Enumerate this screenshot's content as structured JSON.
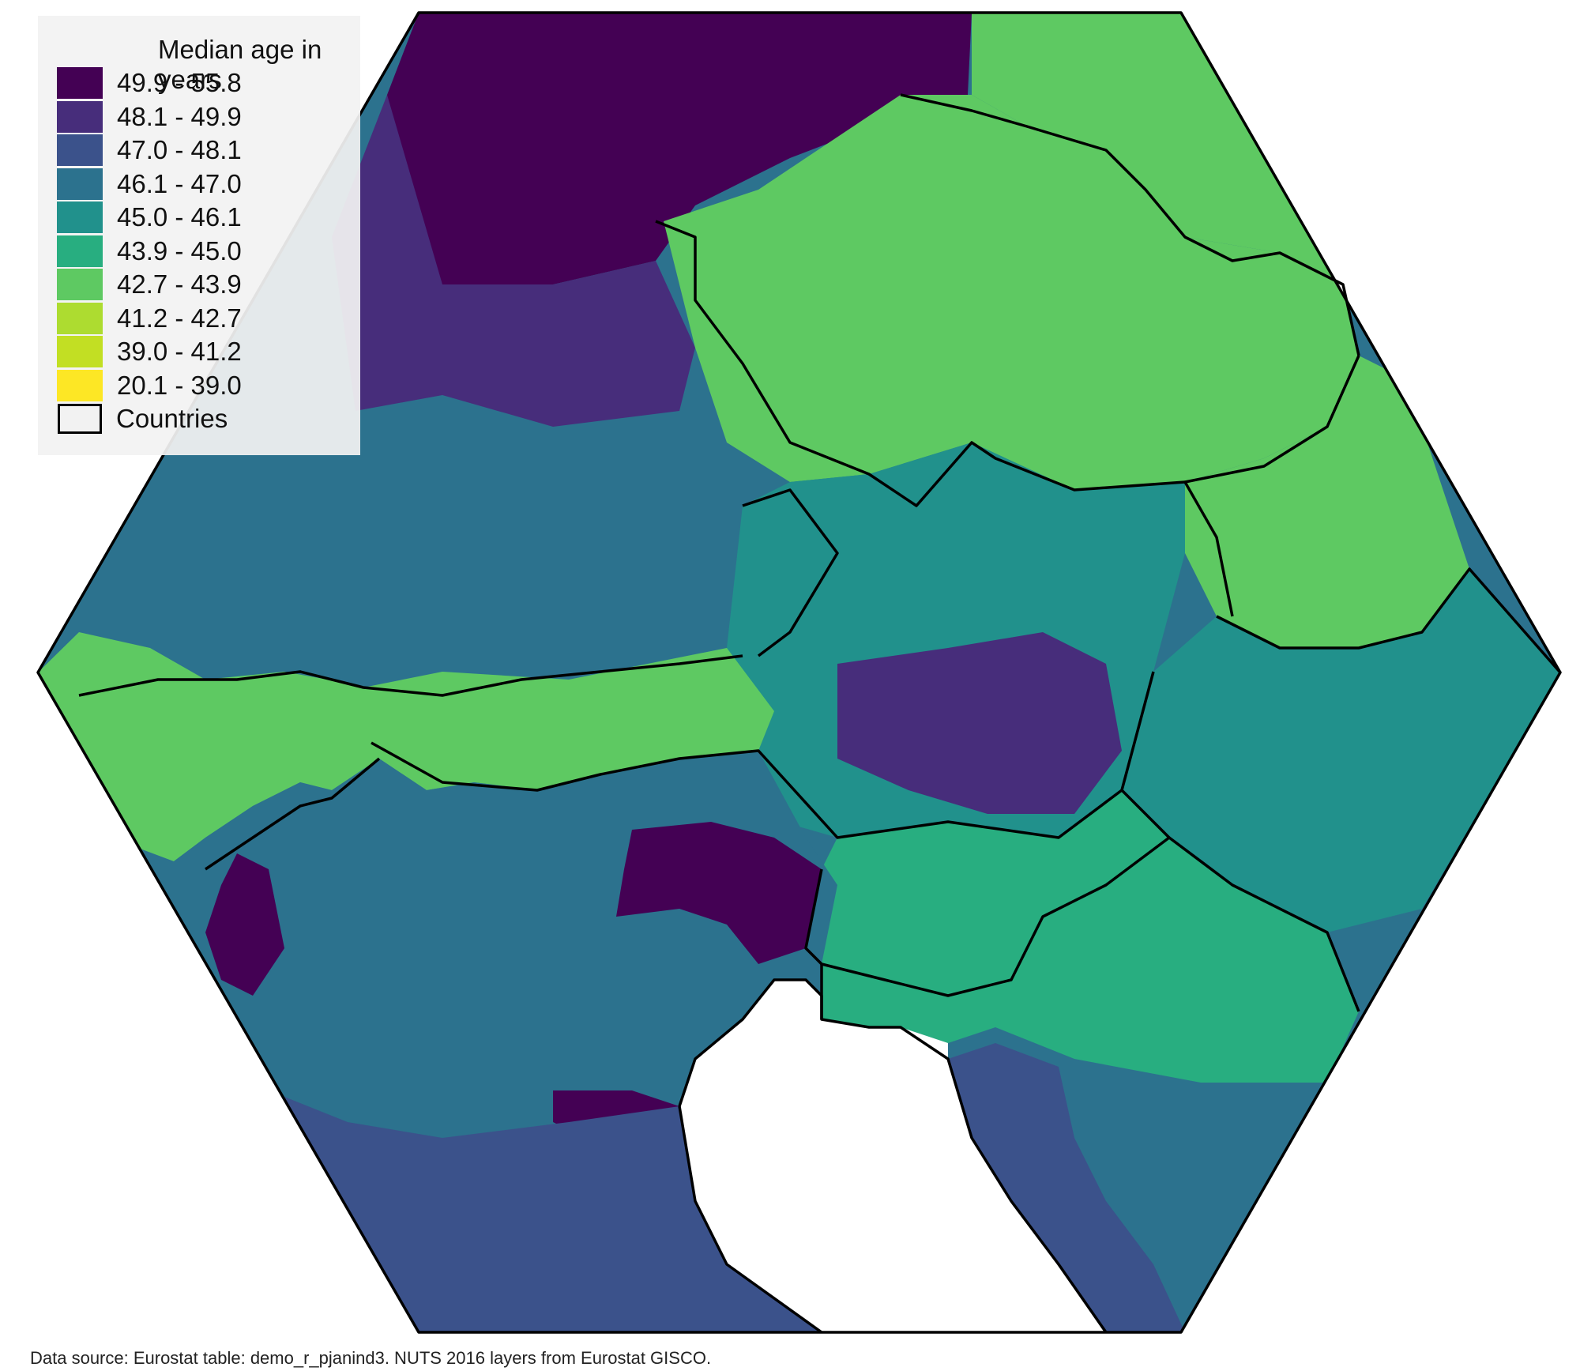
{
  "legend": {
    "title": "Median age in years",
    "classes": [
      {
        "label": "49.9 - 55.8",
        "color": "#440154"
      },
      {
        "label": "48.1 - 49.9",
        "color": "#472d7b"
      },
      {
        "label": "47.0 - 48.1",
        "color": "#3b528b"
      },
      {
        "label": "46.1 - 47.0",
        "color": "#2c728e"
      },
      {
        "label": "45.0 - 46.1",
        "color": "#21918c"
      },
      {
        "label": "43.9 - 45.0",
        "color": "#28ae80"
      },
      {
        "label": "42.7 - 43.9",
        "color": "#5ec962"
      },
      {
        "label": "41.2 - 42.7",
        "color": "#addc30"
      },
      {
        "label": "39.0 - 41.2",
        "color": "#c2df23"
      },
      {
        "label": "20.1 - 39.0",
        "color": "#fde725"
      }
    ],
    "countries_label": "Countries"
  },
  "source_note": "Data source: Eurostat table: demo_r_pjanind3. NUTS 2016 layers from Eurostat GISCO.",
  "map": {
    "region_colors": {
      "germany_north": "#440154",
      "germany_central": "#472d7b",
      "germany_south": "#2c728e",
      "czechia": "#5ec962",
      "poland_southwest": "#5ec962",
      "slovakia": "#5ec962",
      "austria": "#21918c",
      "switzerland": "#5ec962",
      "italy_north": "#2c728e",
      "italy_south": "#3b528b",
      "slovenia": "#28ae80",
      "croatia": "#28ae80",
      "hungary": "#21918c",
      "sea": "#ffffff",
      "borders": "#000000"
    }
  }
}
